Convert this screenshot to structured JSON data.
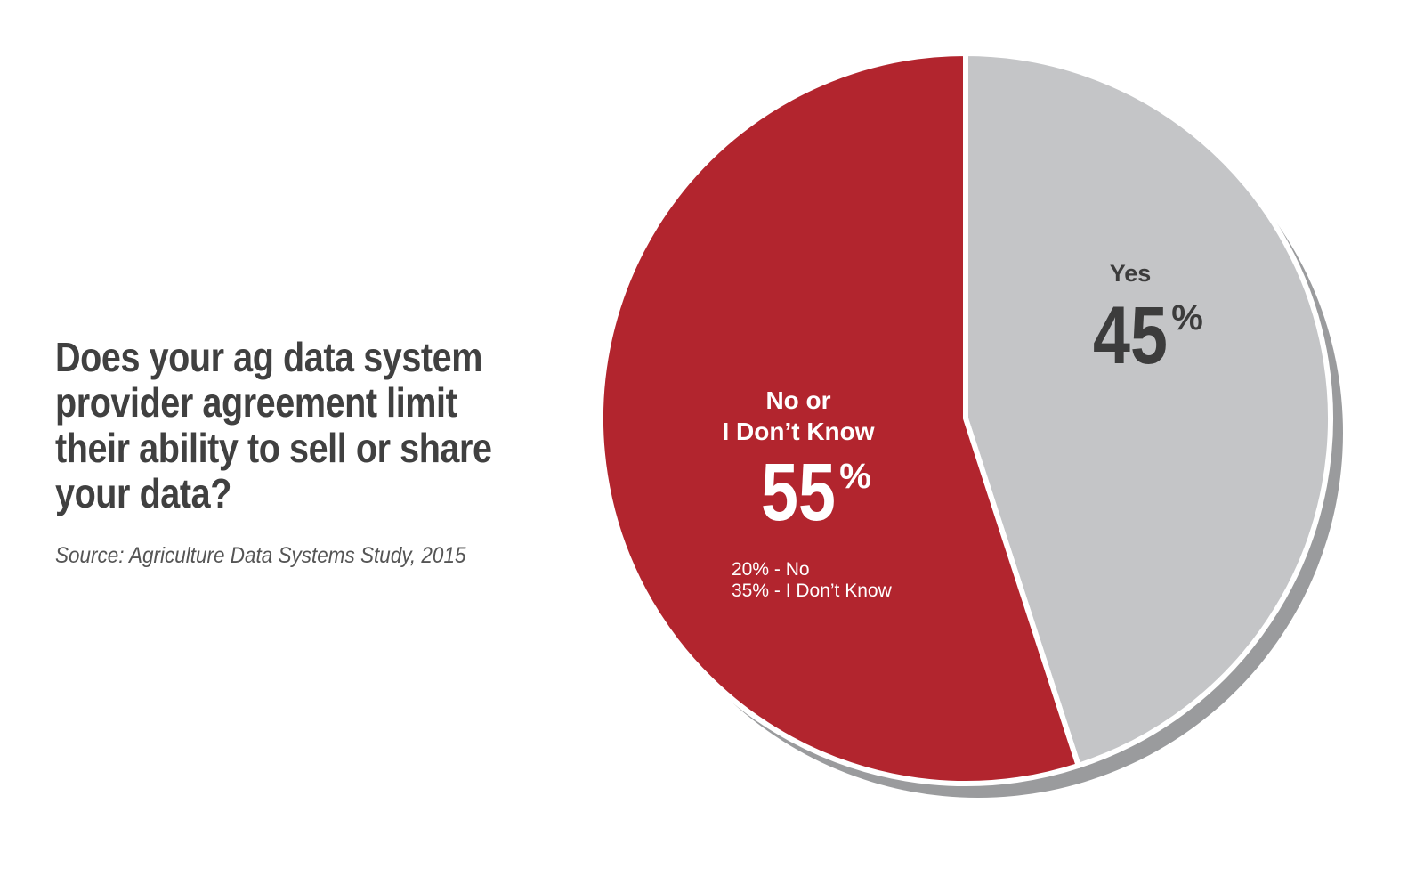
{
  "question": "Does your ag data system provider agreement limit their ability to sell or share your data?",
  "source": "Source: Agriculture Data Systems Study, 2015",
  "colors": {
    "no_or_dont_know": "#b2252e",
    "yes": "#c4c5c7",
    "shadow": "#9a9b9d",
    "dark_text": "#3c3c3c",
    "light_text": "#ffffff"
  },
  "chart_data": {
    "type": "pie",
    "slices": [
      {
        "label": "Yes",
        "value": 45,
        "value_label": "45",
        "unit": "%"
      },
      {
        "label": "No or I Don’t Know",
        "label_lines": [
          "No or",
          "I Don’t Know"
        ],
        "value": 55,
        "value_label": "55",
        "unit": "%",
        "breakdown": [
          "20% - No",
          "35% - I Don’t Know"
        ]
      }
    ]
  }
}
